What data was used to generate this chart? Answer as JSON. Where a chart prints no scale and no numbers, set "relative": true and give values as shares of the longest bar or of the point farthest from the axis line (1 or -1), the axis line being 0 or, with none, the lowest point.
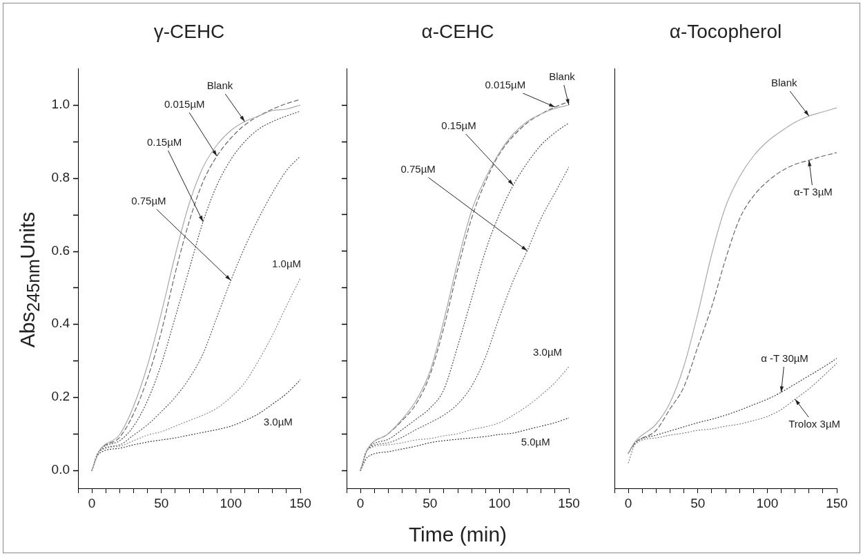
{
  "chart_data": [
    {
      "type": "line",
      "title": "γ-CEHC",
      "ylabel": "Abs$_{245nm}$Units",
      "tick_labels": "xy",
      "xlim": [
        -10,
        150
      ],
      "ylim": [
        -0.05,
        1.1
      ],
      "xticks": [
        {
          "value": -10,
          "label": null
        },
        0,
        {
          "value": 10,
          "label": null
        },
        {
          "value": 20,
          "label": null
        },
        {
          "value": 30,
          "label": null
        },
        {
          "value": 40,
          "label": null
        },
        50,
        {
          "value": 60,
          "label": null
        },
        {
          "value": 70,
          "label": null
        },
        {
          "value": 80,
          "label": null
        },
        {
          "value": 90,
          "label": null
        },
        100,
        {
          "value": 110,
          "label": null
        },
        {
          "value": 120,
          "label": null
        },
        {
          "value": 130,
          "label": null
        },
        {
          "value": 140,
          "label": null
        },
        150
      ],
      "yticks": [
        {
          "value": 0,
          "label": "0.0"
        },
        {
          "value": 0.1,
          "label": null
        },
        {
          "value": 0.2,
          "label": "0.2"
        },
        {
          "value": 0.3,
          "label": null
        },
        {
          "value": 0.4,
          "label": "0.4"
        },
        {
          "value": 0.5,
          "label": null
        },
        {
          "value": 0.6,
          "label": "0.6"
        },
        {
          "value": 0.7,
          "label": null
        },
        {
          "value": 0.8,
          "label": "0.8"
        },
        {
          "value": 0.9,
          "label": null
        },
        {
          "value": 1,
          "label": "1.0"
        }
      ],
      "x": [
        0,
        5,
        20,
        30,
        40,
        50,
        60,
        70,
        80,
        90,
        100,
        110,
        120,
        130,
        140,
        150
      ],
      "series": [
        {
          "color": "#a8a8a8",
          "line_style": "solid",
          "values": [
            0,
            0.05,
            0.098,
            0.176,
            0.287,
            0.43,
            0.59,
            0.73,
            0.83,
            0.89,
            0.93,
            0.955,
            0.97,
            0.985,
            0.99,
            1.0
          ]
        },
        {
          "color": "#666666",
          "line_style": "dashed",
          "values": [
            0,
            0.05,
            0.09,
            0.155,
            0.25,
            0.38,
            0.54,
            0.68,
            0.79,
            0.86,
            0.91,
            0.945,
            0.97,
            0.99,
            1.005,
            1.015
          ]
        },
        {
          "color": "#444444",
          "line_style": "dotted",
          "values": [
            0,
            0.05,
            0.08,
            0.12,
            0.19,
            0.29,
            0.42,
            0.55,
            0.68,
            0.78,
            0.85,
            0.9,
            0.935,
            0.955,
            0.97,
            0.983
          ]
        },
        {
          "color": "#555555",
          "line_style": "dotted",
          "values": [
            0,
            0.05,
            0.07,
            0.095,
            0.125,
            0.16,
            0.2,
            0.25,
            0.32,
            0.42,
            0.52,
            0.61,
            0.69,
            0.76,
            0.82,
            0.86
          ]
        },
        {
          "color": "#888888",
          "line_style": "dotted",
          "values": [
            0,
            0.05,
            0.065,
            0.08,
            0.095,
            0.105,
            0.12,
            0.135,
            0.15,
            0.17,
            0.2,
            0.24,
            0.3,
            0.37,
            0.45,
            0.525
          ]
        },
        {
          "color": "#333333",
          "line_style": "dotted",
          "values": [
            0,
            0.045,
            0.06,
            0.07,
            0.077,
            0.083,
            0.088,
            0.095,
            0.103,
            0.11,
            0.12,
            0.135,
            0.155,
            0.18,
            0.21,
            0.248
          ]
        }
      ],
      "annotations": [
        {
          "text": "Blank",
          "x": 110,
          "y": 0.955
        },
        {
          "text": "0.015µM",
          "x": 90,
          "y": 0.86
        },
        {
          "text": "0.15µM",
          "x": 80,
          "y": 0.68
        },
        {
          "text": "0.75µM",
          "x": 100,
          "y": 0.52
        },
        "1.0µM",
        "3.0µM"
      ]
    },
    {
      "type": "line",
      "title": "α-CEHC",
      "xlabel": "Time (min)",
      "tick_labels": "x",
      "xlim": [
        -10,
        150
      ],
      "ylim": [
        -0.05,
        1.1
      ],
      "xticks": [
        {
          "value": -10,
          "label": null
        },
        0,
        {
          "value": 10,
          "label": null
        },
        {
          "value": 20,
          "label": null
        },
        {
          "value": 30,
          "label": null
        },
        {
          "value": 40,
          "label": null
        },
        50,
        {
          "value": 60,
          "label": null
        },
        {
          "value": 70,
          "label": null
        },
        {
          "value": 80,
          "label": null
        },
        {
          "value": 90,
          "label": null
        },
        100,
        {
          "value": 110,
          "label": null
        },
        {
          "value": 120,
          "label": null
        },
        {
          "value": 130,
          "label": null
        },
        {
          "value": 140,
          "label": null
        },
        150
      ],
      "yticks": [
        {
          "value": 0,
          "label": null
        },
        {
          "value": 0.1,
          "label": null
        },
        {
          "value": 0.2,
          "label": null
        },
        {
          "value": 0.3,
          "label": null
        },
        {
          "value": 0.4,
          "label": null
        },
        {
          "value": 0.5,
          "label": null
        },
        {
          "value": 0.6,
          "label": null
        },
        {
          "value": 0.7,
          "label": null
        },
        {
          "value": 0.8,
          "label": null
        },
        {
          "value": 0.9,
          "label": null
        },
        {
          "value": 1,
          "label": null
        }
      ],
      "x": [
        0,
        5,
        20,
        30,
        40,
        50,
        60,
        70,
        80,
        90,
        100,
        110,
        120,
        130,
        140,
        150
      ],
      "series": [
        {
          "color": "#a8a8a8",
          "line_style": "solid",
          "values": [
            0,
            0.055,
            0.1,
            0.14,
            0.19,
            0.27,
            0.41,
            0.57,
            0.71,
            0.8,
            0.87,
            0.92,
            0.955,
            0.975,
            0.99,
            1.0
          ]
        },
        {
          "color": "#666666",
          "line_style": "dashed",
          "values": [
            0,
            0.055,
            0.1,
            0.135,
            0.18,
            0.26,
            0.39,
            0.55,
            0.69,
            0.79,
            0.865,
            0.915,
            0.95,
            0.975,
            0.995,
            1.01
          ]
        },
        {
          "color": "#444444",
          "line_style": "dotted",
          "values": [
            0,
            0.055,
            0.085,
            0.11,
            0.14,
            0.17,
            0.22,
            0.34,
            0.47,
            0.6,
            0.7,
            0.78,
            0.84,
            0.89,
            0.925,
            0.95
          ]
        },
        {
          "color": "#555555",
          "line_style": "dotted",
          "values": [
            0,
            0.055,
            0.075,
            0.09,
            0.11,
            0.13,
            0.15,
            0.18,
            0.23,
            0.31,
            0.42,
            0.52,
            0.6,
            0.69,
            0.76,
            0.83
          ]
        },
        {
          "color": "#888888",
          "line_style": "dotted",
          "values": [
            0,
            0.055,
            0.07,
            0.075,
            0.082,
            0.087,
            0.093,
            0.1,
            0.11,
            0.118,
            0.13,
            0.15,
            0.175,
            0.205,
            0.24,
            0.283
          ]
        },
        {
          "color": "#333333",
          "line_style": "dotted",
          "values": [
            0,
            0.036,
            0.05,
            0.058,
            0.066,
            0.074,
            0.08,
            0.085,
            0.088,
            0.092,
            0.097,
            0.102,
            0.11,
            0.12,
            0.13,
            0.142
          ]
        }
      ],
      "annotations": [
        {
          "text": "Blank",
          "x": 150,
          "y": 1.0
        },
        {
          "text": "0.015µM",
          "x": 140,
          "y": 0.995
        },
        {
          "text": "0.15µM",
          "x": 110,
          "y": 0.78
        },
        {
          "text": "0.75µM",
          "x": 120,
          "y": 0.6
        },
        "3.0µM",
        "5.0µM"
      ]
    },
    {
      "type": "line",
      "title": "α-Tocopherol",
      "tick_labels": "x",
      "relative": true,
      "xlim": [
        -10,
        150
      ],
      "xticks": [
        {
          "value": -10,
          "label": null
        },
        0,
        {
          "value": 10,
          "label": null
        },
        {
          "value": 20,
          "label": null
        },
        {
          "value": 30,
          "label": null
        },
        {
          "value": 40,
          "label": null
        },
        50,
        {
          "value": 60,
          "label": null
        },
        {
          "value": 70,
          "label": null
        },
        {
          "value": 80,
          "label": null
        },
        {
          "value": 90,
          "label": null
        },
        100,
        {
          "value": 110,
          "label": null
        },
        {
          "value": 120,
          "label": null
        },
        {
          "value": 130,
          "label": null
        },
        {
          "value": 140,
          "label": null
        },
        150
      ],
      "x": [
        0,
        5,
        20,
        30,
        40,
        50,
        60,
        70,
        80,
        90,
        100,
        110,
        120,
        130,
        140,
        150
      ],
      "series": [
        {
          "color": "#a8a8a8",
          "line_style": "solid",
          "values": [
            0.092,
            0.123,
            0.169,
            0.225,
            0.322,
            0.46,
            0.616,
            0.741,
            0.819,
            0.874,
            0.911,
            0.938,
            0.963,
            0.978,
            0.99,
            1
          ]
        },
        {
          "color": "#666666",
          "line_style": "dashed",
          "values": [
            0.092,
            0.12,
            0.152,
            0.209,
            0.267,
            0.373,
            0.478,
            0.602,
            0.708,
            0.768,
            0.806,
            0.833,
            0.851,
            0.863,
            0.874,
            0.883
          ]
        },
        {
          "color": "#333333",
          "line_style": "dotted",
          "values": [
            0.092,
            0.119,
            0.14,
            0.15,
            0.161,
            0.172,
            0.182,
            0.193,
            0.205,
            0.219,
            0.234,
            0.253,
            0.274,
            0.296,
            0.318,
            0.341
          ]
        },
        {
          "color": "#777777",
          "line_style": "dotted",
          "values": [
            0.068,
            0.117,
            0.133,
            0.14,
            0.145,
            0.152,
            0.157,
            0.163,
            0.169,
            0.178,
            0.189,
            0.207,
            0.234,
            0.262,
            0.294,
            0.328
          ]
        }
      ],
      "annotations": [
        {
          "text": "Blank",
          "x": 130,
          "y": 0.978
        },
        {
          "text": "α-T 3µM",
          "x": 130,
          "y": 0.863
        },
        {
          "text": "α -T 30µM",
          "x": 110,
          "y": 0.253
        },
        {
          "text": "Trolox 3µM",
          "x": 120,
          "y": 0.234
        }
      ]
    }
  ]
}
